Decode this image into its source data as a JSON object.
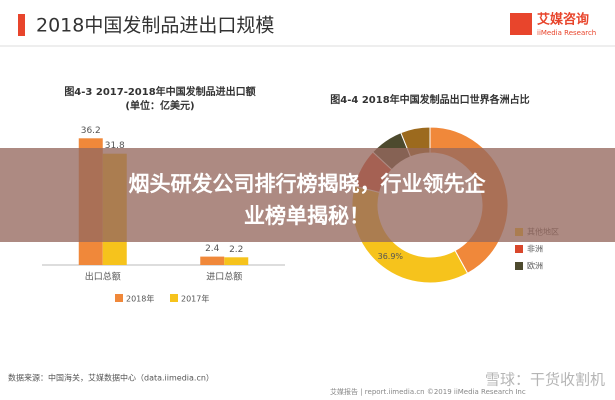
{
  "header": {
    "title": "2018中国发制品进出口规模",
    "logo": "艾媒咨询",
    "logo_sub": "iiMedia Research"
  },
  "chart_data": [
    {
      "type": "bar",
      "title": "图4-3 2017-2018年中国发制品进出口额",
      "subtitle": "(单位：亿美元)",
      "categories": [
        "出口总额",
        "进口总额"
      ],
      "series": [
        {
          "name": "2018年",
          "color": "#f0883a",
          "values": [
            36.2,
            2.4
          ]
        },
        {
          "name": "2017年",
          "color": "#f6c31c",
          "values": [
            31.8,
            2.2
          ]
        }
      ],
      "ylim": [
        0,
        40
      ]
    },
    {
      "type": "pie",
      "title": "图4-4 2018年中国发制品出口世界各洲占比",
      "categories": [
        null,
        "其他地区",
        "非洲",
        "欧洲",
        null
      ],
      "values": [
        42,
        36.9,
        8,
        7,
        6.1
      ],
      "value_labels": [
        null,
        "36.9%",
        null,
        null,
        null
      ],
      "colors": [
        "#f0883a",
        "#f6c31c",
        "#d9472b",
        "#4d4a2e",
        "#9c6a1e"
      ]
    }
  ],
  "overlay": {
    "line1": "烟头研发公司排行榜揭晓，行业领先企",
    "line2": "业榜单揭秘！"
  },
  "source": "数据来源：中国海关，艾媒数据中心（data.iimedia.cn）",
  "footer": {
    "report": "艾媒报告 | report.iimedia.cn ©2019 iiMedia Research Inc",
    "watermark": "雪球：干货收割机"
  }
}
